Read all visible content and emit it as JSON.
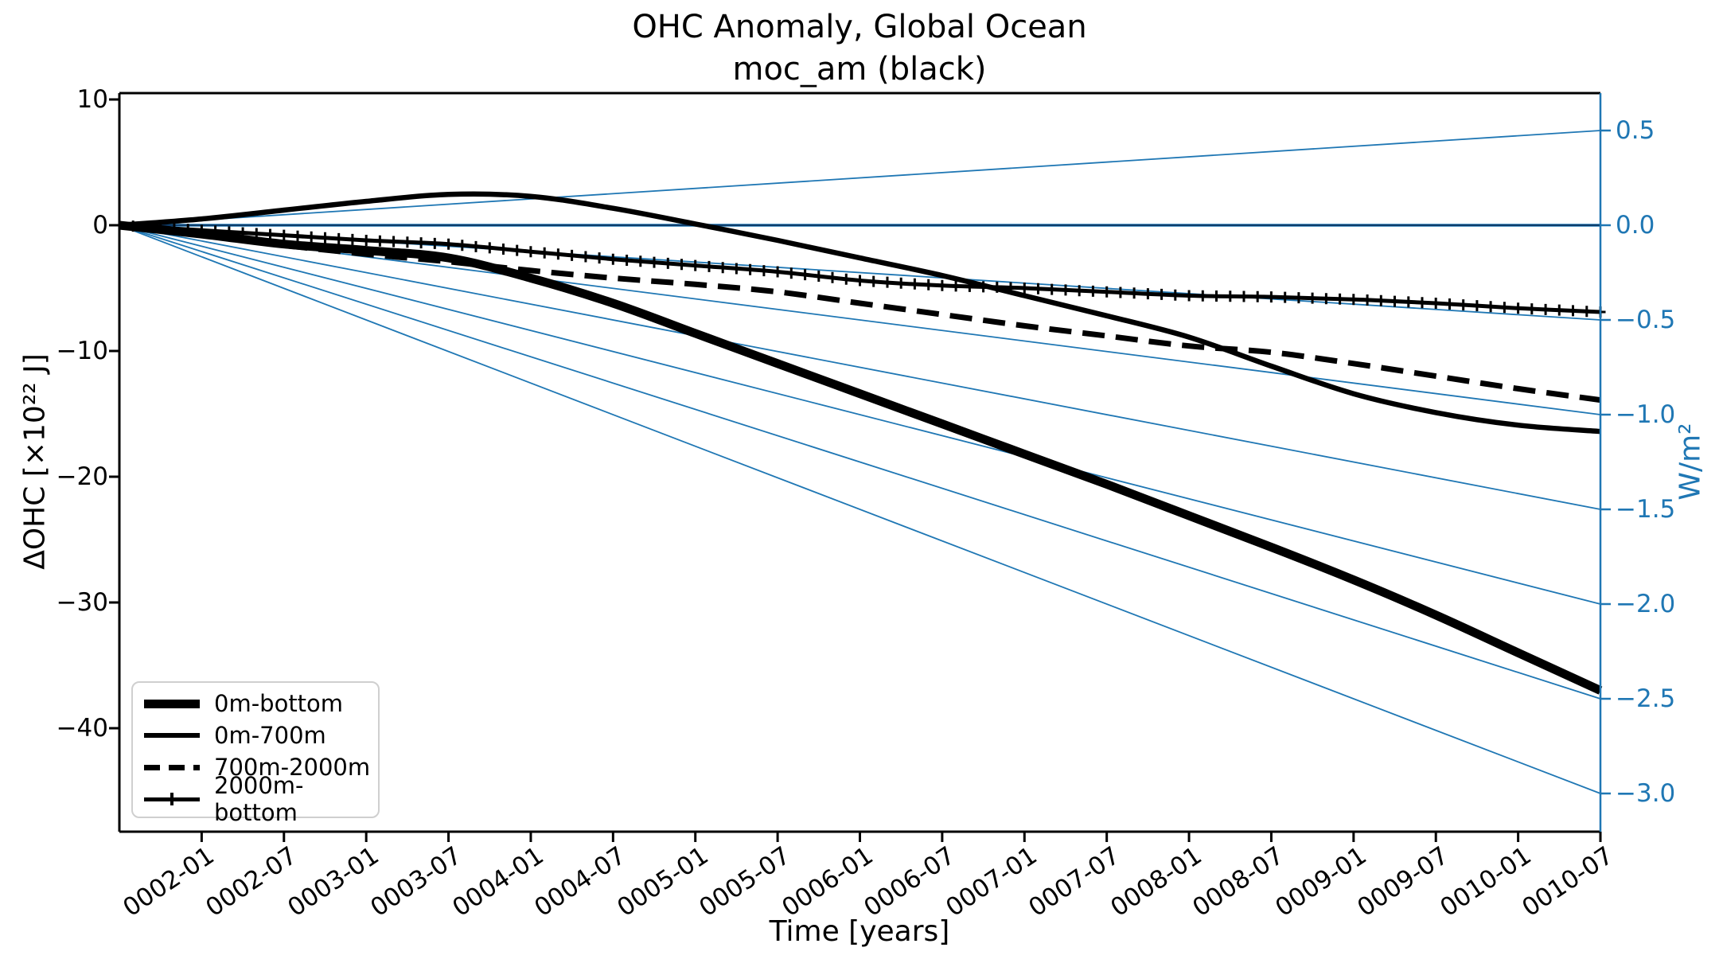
{
  "chart_data": {
    "type": "line",
    "title": "OHC Anomaly, Global Ocean",
    "subtitle": "moc_am (black)",
    "xlabel": "Time [years]",
    "ylabel_left": "ΔOHC [×10²² J]",
    "ylabel_right": "W/m²",
    "x_start": "0001-07",
    "x_tick_labels": [
      "0002-01",
      "0002-07",
      "0003-01",
      "0003-07",
      "0004-01",
      "0004-07",
      "0005-01",
      "0005-07",
      "0006-01",
      "0006-07",
      "0007-01",
      "0007-07",
      "0008-01",
      "0008-07",
      "0009-01",
      "0009-07",
      "0010-01",
      "0010-07"
    ],
    "x_tick_months": [
      6,
      12,
      18,
      24,
      30,
      36,
      42,
      48,
      54,
      60,
      66,
      72,
      78,
      84,
      90,
      96,
      102,
      108
    ],
    "y_ticks_left": {
      "values": [
        10,
        0,
        -10,
        -20,
        -30,
        -40
      ],
      "labels": [
        "10",
        "0",
        "−10",
        "−20",
        "−30",
        "−40"
      ]
    },
    "y_ticks_right": {
      "values": [
        0.5,
        0.0,
        -0.5,
        -1.0,
        -1.5,
        -2.0,
        -2.5,
        -3.0
      ],
      "labels": [
        "0.5",
        "0.0",
        "−0.5",
        "−1.0",
        "−1.5",
        "−2.0",
        "−2.5",
        "−3.0"
      ]
    },
    "ylim_left": [
      -48.2,
      10.6
    ],
    "ylim_right": [
      -3.2,
      0.71
    ],
    "x_months": [
      0,
      6,
      12,
      18,
      24,
      30,
      36,
      42,
      48,
      54,
      60,
      66,
      72,
      78,
      84,
      90,
      96,
      102,
      108
    ],
    "series": [
      {
        "name": "0m-bottom",
        "style": "solid",
        "width": 11,
        "values": [
          0,
          -0.7,
          -1.5,
          -2.0,
          -2.6,
          -4.2,
          -6.2,
          -8.6,
          -11.0,
          -13.4,
          -15.8,
          -18.2,
          -20.6,
          -23.1,
          -25.6,
          -28.2,
          -31.0,
          -34.0,
          -37.0
        ]
      },
      {
        "name": "0m-700m",
        "style": "solid",
        "width": 6.5,
        "values": [
          0,
          0.5,
          1.2,
          1.9,
          2.45,
          2.3,
          1.35,
          0.1,
          -1.2,
          -2.6,
          -4.0,
          -5.6,
          -7.2,
          -8.9,
          -11.2,
          -13.4,
          -14.9,
          -15.9,
          -16.4
        ]
      },
      {
        "name": "700m-2000m",
        "style": "dashed",
        "width": 7,
        "values": [
          0,
          -0.8,
          -1.6,
          -2.3,
          -2.9,
          -3.6,
          -4.2,
          -4.7,
          -5.3,
          -6.2,
          -7.1,
          -8.0,
          -8.8,
          -9.6,
          -10.1,
          -11.0,
          -12.0,
          -13.0,
          -13.9
        ]
      },
      {
        "name": "2000m-bottom",
        "style": "marker",
        "width": 5,
        "values": [
          0,
          -0.4,
          -0.8,
          -1.2,
          -1.5,
          -2.1,
          -2.7,
          -3.2,
          -3.7,
          -4.4,
          -4.8,
          -5.0,
          -5.3,
          -5.6,
          -5.7,
          -5.9,
          -6.2,
          -6.6,
          -6.9
        ]
      }
    ],
    "flux_lines_wm2": [
      0.5,
      0,
      -0.5,
      -1.0,
      -1.5,
      -2.0,
      -2.5,
      -3.0
    ],
    "highlighted_flux": 0,
    "colors": {
      "series_line": "#000000",
      "flux_line": "#1f77b4",
      "flux_zero_core": "#0d3561",
      "right_axis": "#1f77b4",
      "left_axis": "#000000"
    },
    "legend_position": "lower left",
    "grid": false
  }
}
